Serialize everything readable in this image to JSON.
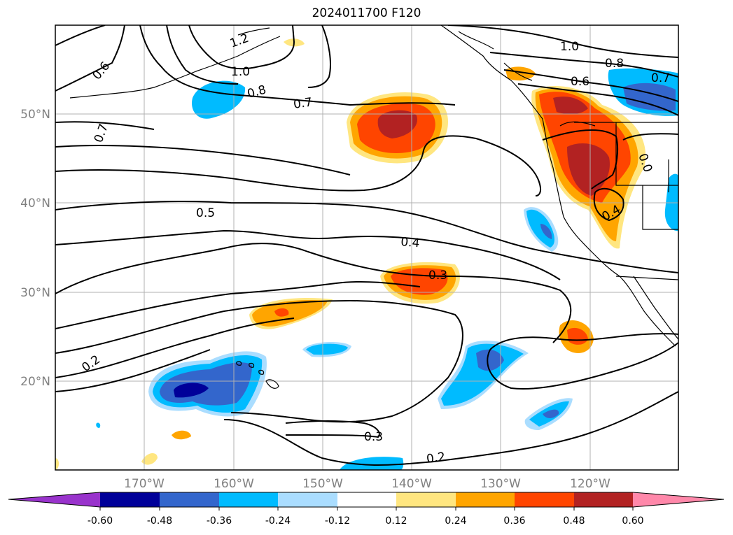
{
  "title": "2024011700 F120",
  "map": {
    "longitude_ticks": [
      "170°W",
      "160°W",
      "150°W",
      "140°W",
      "130°W",
      "120°W"
    ],
    "latitude_ticks": [
      "50°N",
      "40°N",
      "30°N",
      "20°N"
    ],
    "contour_labels": [
      "1.2",
      "1.0",
      "0.8",
      "0.7",
      "0.6",
      "0.7",
      "0.5",
      "0.4",
      "0.3",
      "0.2",
      "0.3",
      "0.2",
      "1.0",
      "0.8",
      "0.6",
      "0.7",
      "0.4",
      "0.0"
    ],
    "grid": true
  },
  "colorbar": {
    "ticks": [
      "-0.60",
      "-0.48",
      "-0.36",
      "-0.24",
      "-0.12",
      "0.12",
      "0.24",
      "0.36",
      "0.48",
      "0.60"
    ],
    "colors": [
      "#9933cc",
      "#000099",
      "#3366cc",
      "#00bbff",
      "#aaddff",
      "#ffffff",
      "#ffe680",
      "#ffa500",
      "#ff4500",
      "#b22222",
      "#ff88aa"
    ],
    "extend": "both"
  }
}
